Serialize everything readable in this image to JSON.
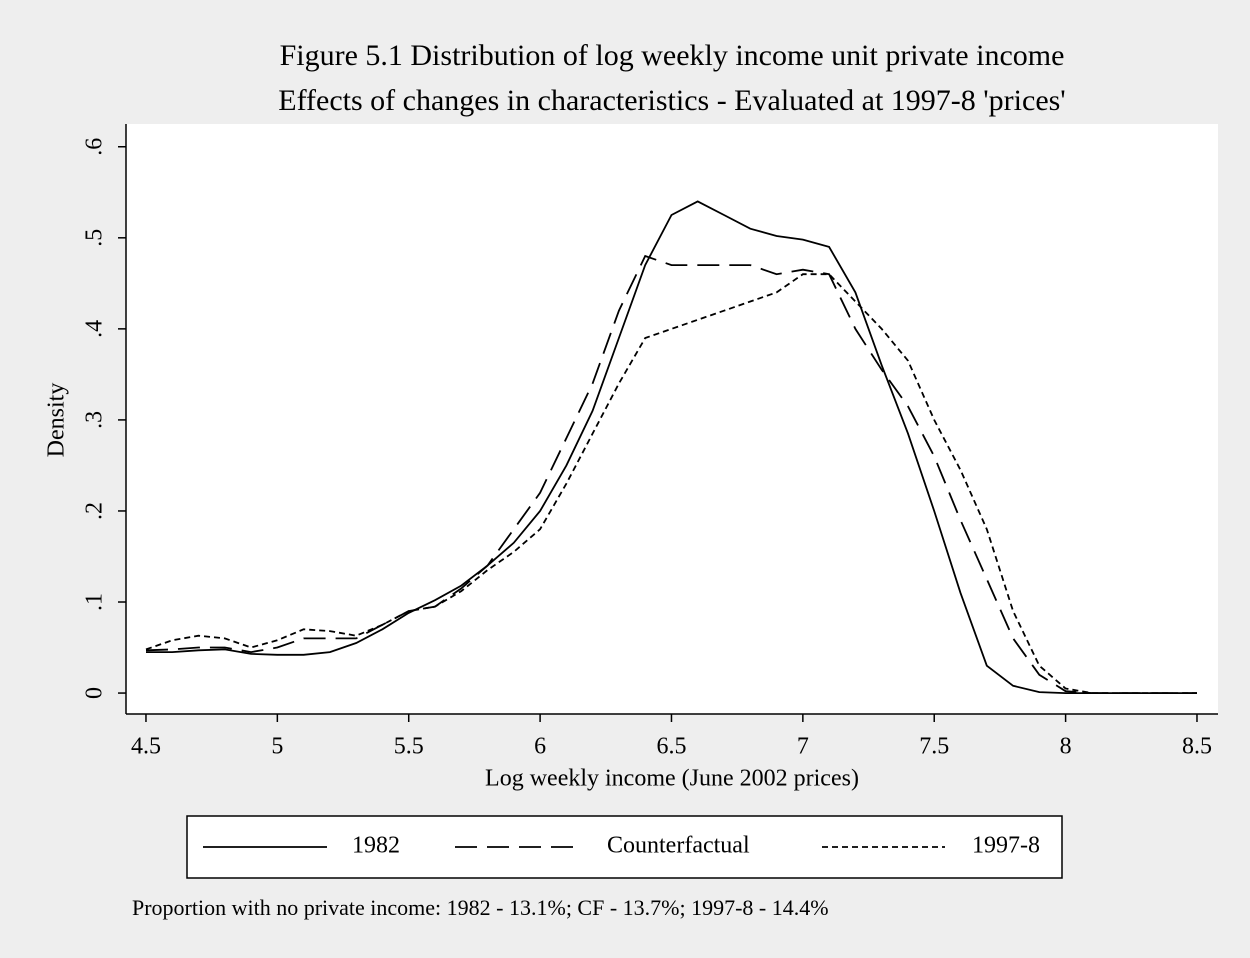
{
  "chart_data": {
    "type": "line",
    "title": "Figure 5.1 Distribution of log weekly income unit private income",
    "subtitle": "Effects of changes in characteristics - Evaluated at 1997-8 'prices'",
    "x_label": "Log weekly income (June 2002 prices)",
    "y_label": "Density",
    "note": "Proportion with no private income: 1982 - 13.1%;  CF - 13.7%;  1997-8 - 14.4%",
    "x": [
      4.5,
      4.6,
      4.7,
      4.8,
      4.9,
      5.0,
      5.1,
      5.2,
      5.3,
      5.4,
      5.5,
      5.6,
      5.7,
      5.8,
      5.9,
      6.0,
      6.1,
      6.2,
      6.3,
      6.4,
      6.5,
      6.6,
      6.7,
      6.8,
      6.9,
      7.0,
      7.1,
      7.2,
      7.3,
      7.4,
      7.5,
      7.6,
      7.7,
      7.8,
      7.9,
      8.0,
      8.1,
      8.2,
      8.3,
      8.4,
      8.5
    ],
    "series": [
      {
        "name": "1982",
        "color": "#000000",
        "dash": "solid",
        "values": [
          0.045,
          0.045,
          0.047,
          0.048,
          0.043,
          0.042,
          0.042,
          0.045,
          0.055,
          0.07,
          0.088,
          0.102,
          0.118,
          0.14,
          0.165,
          0.2,
          0.25,
          0.31,
          0.39,
          0.47,
          0.525,
          0.54,
          0.525,
          0.51,
          0.502,
          0.498,
          0.49,
          0.44,
          0.36,
          0.285,
          0.2,
          0.11,
          0.03,
          0.008,
          0.001,
          0,
          0,
          0,
          0,
          0,
          0
        ]
      },
      {
        "name": "Counterfactual",
        "color": "#000000",
        "dash": "dashed",
        "values": [
          0.047,
          0.048,
          0.05,
          0.05,
          0.045,
          0.05,
          0.06,
          0.06,
          0.06,
          0.075,
          0.09,
          0.095,
          0.115,
          0.14,
          0.18,
          0.22,
          0.28,
          0.34,
          0.42,
          0.48,
          0.47,
          0.47,
          0.47,
          0.47,
          0.46,
          0.465,
          0.46,
          0.4,
          0.355,
          0.315,
          0.26,
          0.19,
          0.125,
          0.06,
          0.02,
          0.002,
          0,
          0,
          0,
          0,
          0
        ]
      },
      {
        "name": "1997-8",
        "color": "#000000",
        "dash": "dotted",
        "values": [
          0.048,
          0.058,
          0.063,
          0.06,
          0.05,
          0.058,
          0.07,
          0.068,
          0.063,
          0.075,
          0.09,
          0.095,
          0.112,
          0.135,
          0.155,
          0.18,
          0.23,
          0.285,
          0.34,
          0.39,
          0.4,
          0.41,
          0.42,
          0.43,
          0.44,
          0.46,
          0.46,
          0.43,
          0.4,
          0.365,
          0.3,
          0.245,
          0.18,
          0.09,
          0.03,
          0.005,
          0,
          0,
          0,
          0,
          0
        ]
      }
    ],
    "xlim": [
      4.424,
      8.58
    ],
    "ylim": [
      -0.023,
      0.625
    ],
    "xticks": [
      4.5,
      5,
      5.5,
      6,
      6.5,
      7,
      7.5,
      8,
      8.5
    ],
    "yticks": [
      0,
      {
        "value": 0.1,
        "label": ".1"
      },
      {
        "value": 0.2,
        "label": ".2"
      },
      {
        "value": 0.3,
        "label": ".3"
      },
      {
        "value": 0.4,
        "label": ".4"
      },
      {
        "value": 0.5,
        "label": ".5"
      },
      {
        "value": 0.6,
        "label": ".6"
      }
    ],
    "grid": false,
    "legend": "bottom"
  }
}
